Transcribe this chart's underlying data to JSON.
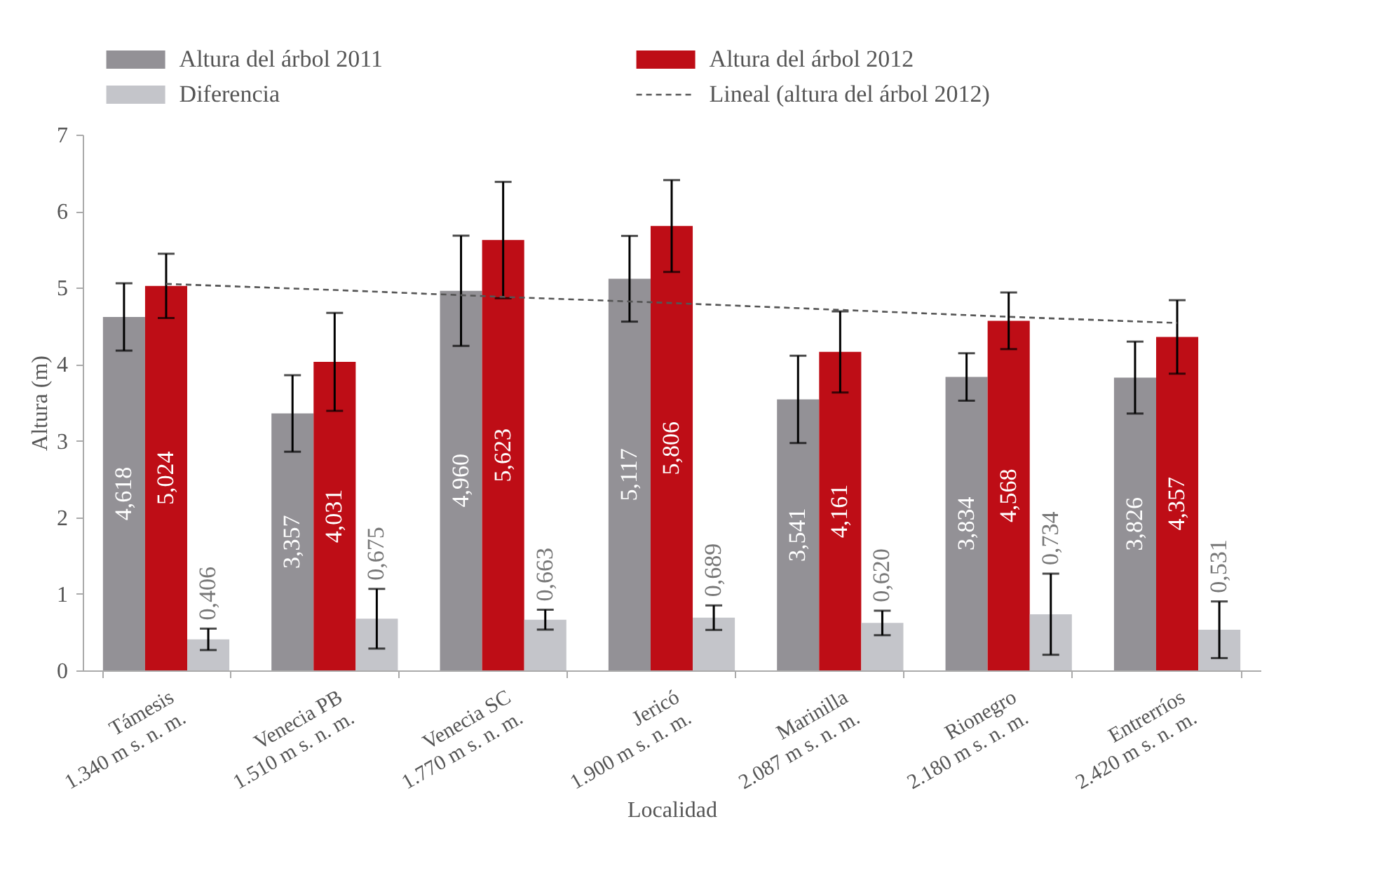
{
  "chart_data": {
    "type": "bar",
    "xlabel": "Localidad",
    "ylabel": "Altura (m)",
    "categories": [
      "Támesis\n1.340 m s. n. m.",
      "Venecia PB\n1.510 m s. n. m.",
      "Venecia SC\n1.770 m s. n. m.",
      "Jericó\n1.900 m s. n. m.",
      "Marinilla\n2.087 m s. n. m.",
      "Rionegro\n2.180 m s. n. m.",
      "Entrerríos\n2.420 m s. n. m."
    ],
    "series": [
      {
        "name": "Altura del árbol 2011",
        "color": "#939196",
        "values": [
          4.618,
          3.357,
          4.96,
          5.117,
          3.541,
          3.834,
          3.826
        ],
        "errors": [
          0.44,
          0.5,
          0.72,
          0.56,
          0.57,
          0.31,
          0.47
        ],
        "value_labels": [
          "4,618",
          "3,357",
          "4,960",
          "5,117",
          "3,541",
          "3,834",
          "3,826"
        ]
      },
      {
        "name": "Altura del árbol 2012",
        "color": "#be0d16",
        "values": [
          5.024,
          4.031,
          5.623,
          5.806,
          4.161,
          4.568,
          4.357
        ],
        "errors": [
          0.42,
          0.64,
          0.76,
          0.6,
          0.53,
          0.37,
          0.48
        ],
        "value_labels": [
          "5,024",
          "4,031",
          "5,623",
          "5,806",
          "4,161",
          "4,568",
          "4,357"
        ]
      },
      {
        "name": "Diferencia",
        "color": "#c4c5ca",
        "values": [
          0.406,
          0.675,
          0.663,
          0.689,
          0.62,
          0.734,
          0.531
        ],
        "errors": [
          0.14,
          0.39,
          0.13,
          0.16,
          0.16,
          0.53,
          0.37
        ],
        "value_labels": [
          "0,406",
          "0,675",
          "0,663",
          "0,689",
          "0,620",
          "0,734",
          "0,531"
        ]
      },
      {
        "name": "Lineal (altura del árbol 2012)",
        "type": "line",
        "color": "#555555",
        "line_style": "dashed",
        "values": [
          5.05,
          4.97,
          4.88,
          4.8,
          4.71,
          4.62,
          4.54
        ]
      }
    ],
    "ylim": [
      0,
      7
    ],
    "yticks": [
      0,
      1,
      2,
      3,
      4,
      5,
      6,
      7
    ],
    "grid": false,
    "legend": "top"
  }
}
